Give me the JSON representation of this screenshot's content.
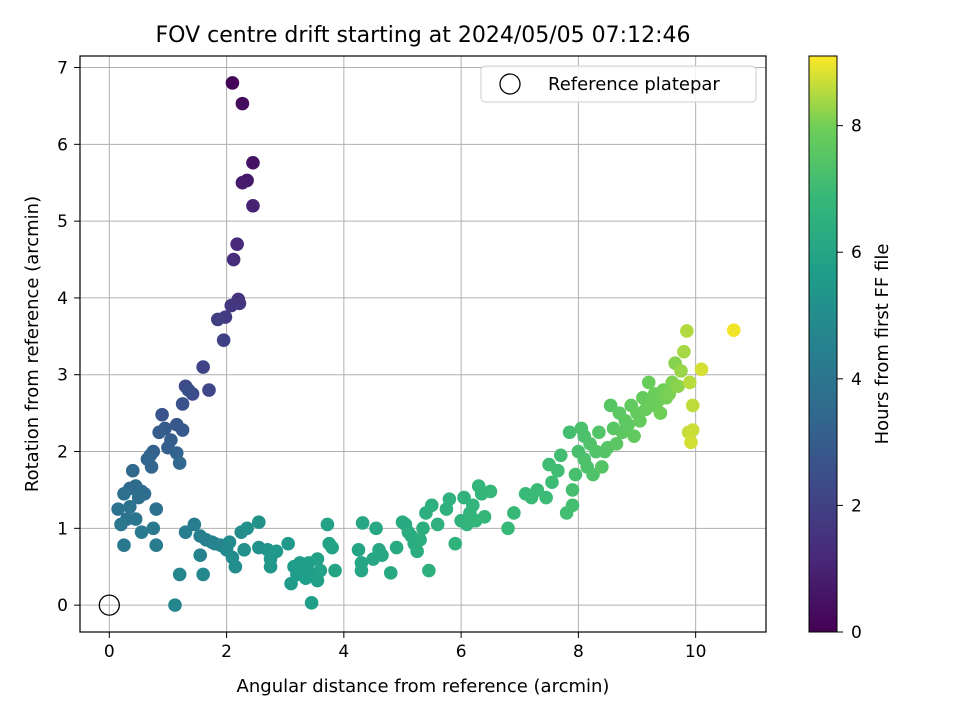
{
  "chart_data": {
    "type": "scatter",
    "title": "FOV centre drift starting at 2024/05/05 07:12:46",
    "xlabel": "Angular distance from reference (arcmin)",
    "ylabel": "Rotation from reference (arcmin)",
    "xlim": [
      -0.5,
      11.2
    ],
    "ylim": [
      -0.35,
      7.15
    ],
    "xticks": [
      0,
      2,
      4,
      6,
      8,
      10
    ],
    "yticks": [
      0,
      1,
      2,
      3,
      4,
      5,
      6,
      7
    ],
    "grid": true,
    "legend": {
      "position": "top-right",
      "entries": [
        "Reference platepar"
      ]
    },
    "reference_point": {
      "x": 0,
      "y": 0,
      "marker": "open-circle"
    },
    "colorbar": {
      "label": "Hours from first FF file",
      "colormap": "viridis",
      "range": [
        0,
        9.1
      ],
      "ticks": [
        0,
        2,
        4,
        6,
        8
      ]
    },
    "series": [
      {
        "points": [
          [
            2.1,
            6.8,
            0.1
          ],
          [
            2.27,
            6.53,
            0.3
          ],
          [
            2.45,
            5.76,
            0.5
          ],
          [
            2.35,
            5.53,
            0.7
          ],
          [
            2.27,
            5.5,
            0.8
          ],
          [
            2.45,
            5.2,
            1.0
          ],
          [
            2.18,
            4.7,
            1.2
          ],
          [
            2.12,
            4.5,
            1.3
          ],
          [
            2.2,
            3.98,
            1.5
          ],
          [
            2.22,
            3.93,
            1.6
          ],
          [
            2.08,
            3.9,
            1.7
          ],
          [
            1.98,
            3.75,
            1.8
          ],
          [
            1.85,
            3.72,
            1.9
          ],
          [
            1.95,
            3.45,
            2.0
          ],
          [
            1.6,
            3.1,
            2.1
          ],
          [
            1.7,
            2.8,
            2.2
          ],
          [
            1.3,
            2.85,
            2.3
          ],
          [
            1.42,
            2.75,
            2.4
          ],
          [
            1.35,
            2.8,
            2.5
          ],
          [
            1.25,
            2.62,
            2.6
          ],
          [
            0.9,
            2.48,
            2.7
          ],
          [
            1.15,
            2.35,
            2.8
          ],
          [
            1.25,
            2.28,
            2.85
          ],
          [
            0.95,
            2.3,
            2.9
          ],
          [
            0.85,
            2.25,
            3.0
          ],
          [
            1.05,
            2.15,
            3.05
          ],
          [
            1.0,
            2.05,
            3.1
          ],
          [
            0.75,
            2.0,
            3.15
          ],
          [
            0.7,
            1.95,
            3.2
          ],
          [
            1.15,
            1.98,
            3.25
          ],
          [
            0.65,
            1.9,
            3.3
          ],
          [
            0.72,
            1.8,
            3.35
          ],
          [
            1.2,
            1.85,
            3.4
          ],
          [
            0.4,
            1.75,
            3.45
          ],
          [
            0.45,
            1.55,
            3.5
          ],
          [
            0.35,
            1.52,
            3.55
          ],
          [
            0.55,
            1.48,
            3.6
          ],
          [
            0.6,
            1.45,
            3.65
          ],
          [
            0.5,
            1.4,
            3.7
          ],
          [
            0.25,
            1.45,
            3.75
          ],
          [
            0.8,
            1.25,
            3.8
          ],
          [
            0.15,
            1.25,
            3.85
          ],
          [
            0.35,
            1.28,
            3.9
          ],
          [
            0.3,
            1.12,
            3.95
          ],
          [
            0.45,
            1.12,
            4.0
          ],
          [
            0.2,
            1.05,
            4.05
          ],
          [
            0.25,
            0.78,
            4.1
          ],
          [
            0.75,
            1.0,
            4.15
          ],
          [
            0.55,
            0.95,
            4.2
          ],
          [
            0.8,
            0.78,
            4.25
          ],
          [
            1.45,
            1.05,
            4.3
          ],
          [
            1.3,
            0.95,
            4.35
          ],
          [
            1.55,
            0.9,
            4.4
          ],
          [
            1.65,
            0.85,
            4.45
          ],
          [
            1.75,
            0.82,
            4.5
          ],
          [
            1.8,
            0.8,
            4.55
          ],
          [
            1.55,
            0.65,
            4.6
          ],
          [
            1.9,
            0.78,
            4.65
          ],
          [
            1.2,
            0.4,
            4.7
          ],
          [
            1.12,
            0.0,
            4.75
          ],
          [
            1.6,
            0.4,
            4.8
          ],
          [
            2.0,
            0.72,
            4.85
          ],
          [
            2.05,
            0.82,
            4.9
          ],
          [
            2.1,
            0.62,
            4.95
          ],
          [
            2.15,
            0.5,
            5.0
          ],
          [
            2.25,
            0.95,
            5.05
          ],
          [
            2.35,
            1.0,
            5.1
          ],
          [
            2.3,
            0.72,
            5.15
          ],
          [
            2.55,
            1.08,
            5.2
          ],
          [
            2.55,
            0.75,
            5.25
          ],
          [
            2.7,
            0.72,
            5.3
          ],
          [
            2.75,
            0.6,
            5.35
          ],
          [
            2.75,
            0.5,
            5.4
          ],
          [
            2.85,
            0.7,
            5.45
          ],
          [
            3.05,
            0.8,
            5.5
          ],
          [
            3.1,
            0.28,
            5.55
          ],
          [
            3.15,
            0.5,
            5.6
          ],
          [
            3.2,
            0.4,
            5.62
          ],
          [
            3.25,
            0.55,
            5.65
          ],
          [
            3.3,
            0.45,
            5.68
          ],
          [
            3.35,
            0.35,
            5.7
          ],
          [
            3.4,
            0.55,
            5.72
          ],
          [
            3.45,
            0.03,
            5.75
          ],
          [
            3.5,
            0.4,
            5.78
          ],
          [
            3.55,
            0.32,
            5.8
          ],
          [
            3.55,
            0.6,
            5.82
          ],
          [
            3.6,
            0.45,
            5.85
          ],
          [
            3.72,
            1.05,
            5.88
          ],
          [
            3.75,
            0.8,
            5.9
          ],
          [
            3.8,
            0.75,
            5.92
          ],
          [
            3.85,
            0.45,
            5.95
          ],
          [
            4.25,
            0.72,
            5.98
          ],
          [
            4.3,
            0.55,
            6.0
          ],
          [
            4.3,
            0.45,
            6.02
          ],
          [
            4.32,
            1.07,
            6.05
          ],
          [
            4.5,
            0.6,
            6.08
          ],
          [
            4.55,
            1.0,
            6.1
          ],
          [
            4.6,
            0.72,
            6.12
          ],
          [
            4.65,
            0.65,
            6.15
          ],
          [
            4.8,
            0.42,
            6.18
          ],
          [
            4.9,
            0.75,
            6.2
          ],
          [
            5.0,
            1.08,
            6.22
          ],
          [
            5.05,
            1.05,
            6.25
          ],
          [
            5.1,
            0.95,
            6.28
          ],
          [
            5.15,
            0.9,
            6.3
          ],
          [
            5.2,
            0.8,
            6.32
          ],
          [
            5.25,
            0.7,
            6.35
          ],
          [
            5.3,
            0.85,
            6.38
          ],
          [
            5.35,
            1.0,
            6.4
          ],
          [
            5.4,
            1.2,
            6.42
          ],
          [
            5.45,
            0.45,
            6.45
          ],
          [
            5.5,
            1.3,
            6.48
          ],
          [
            5.6,
            1.05,
            6.5
          ],
          [
            5.75,
            1.25,
            6.52
          ],
          [
            5.8,
            1.38,
            6.55
          ],
          [
            5.9,
            0.8,
            6.58
          ],
          [
            6.0,
            1.1,
            6.6
          ],
          [
            6.05,
            1.4,
            6.62
          ],
          [
            6.1,
            1.05,
            6.65
          ],
          [
            6.15,
            1.2,
            6.68
          ],
          [
            6.2,
            1.3,
            6.7
          ],
          [
            6.25,
            1.1,
            6.72
          ],
          [
            6.3,
            1.55,
            6.75
          ],
          [
            6.35,
            1.45,
            6.78
          ],
          [
            6.4,
            1.15,
            6.8
          ],
          [
            6.5,
            1.48,
            6.82
          ],
          [
            6.8,
            1.0,
            6.85
          ],
          [
            6.9,
            1.2,
            6.88
          ],
          [
            7.1,
            1.45,
            6.9
          ],
          [
            7.2,
            1.4,
            6.92
          ],
          [
            7.3,
            1.5,
            6.95
          ],
          [
            7.45,
            1.4,
            6.98
          ],
          [
            7.55,
            1.6,
            7.0
          ],
          [
            7.5,
            1.83,
            7.02
          ],
          [
            7.65,
            1.75,
            7.05
          ],
          [
            7.7,
            1.95,
            7.08
          ],
          [
            7.8,
            1.2,
            7.1
          ],
          [
            7.85,
            2.25,
            7.12
          ],
          [
            7.9,
            1.3,
            7.15
          ],
          [
            7.9,
            1.5,
            7.18
          ],
          [
            7.95,
            1.7,
            7.2
          ],
          [
            8.0,
            2.0,
            7.22
          ],
          [
            8.05,
            2.3,
            7.25
          ],
          [
            8.1,
            2.2,
            7.28
          ],
          [
            8.1,
            1.9,
            7.3
          ],
          [
            8.15,
            1.8,
            7.32
          ],
          [
            8.2,
            2.1,
            7.35
          ],
          [
            8.25,
            1.7,
            7.38
          ],
          [
            8.3,
            2.0,
            7.4
          ],
          [
            8.35,
            2.25,
            7.42
          ],
          [
            8.4,
            1.8,
            7.45
          ],
          [
            8.45,
            2.0,
            7.48
          ],
          [
            8.5,
            2.05,
            7.5
          ],
          [
            8.55,
            2.6,
            7.52
          ],
          [
            8.6,
            2.3,
            7.55
          ],
          [
            8.65,
            2.1,
            7.58
          ],
          [
            8.7,
            2.5,
            7.6
          ],
          [
            8.75,
            2.25,
            7.62
          ],
          [
            8.8,
            2.4,
            7.65
          ],
          [
            8.85,
            2.35,
            7.68
          ],
          [
            8.9,
            2.6,
            7.7
          ],
          [
            8.95,
            2.2,
            7.72
          ],
          [
            9.0,
            2.5,
            7.75
          ],
          [
            9.05,
            2.4,
            7.78
          ],
          [
            9.1,
            2.7,
            7.8
          ],
          [
            9.15,
            2.55,
            7.82
          ],
          [
            9.2,
            2.9,
            7.85
          ],
          [
            9.25,
            2.6,
            7.88
          ],
          [
            9.3,
            2.75,
            7.9
          ],
          [
            9.35,
            2.65,
            7.92
          ],
          [
            9.4,
            2.5,
            7.95
          ],
          [
            9.45,
            2.8,
            7.98
          ],
          [
            9.5,
            2.7,
            8.0
          ],
          [
            9.55,
            2.75,
            8.05
          ],
          [
            9.6,
            2.9,
            8.1
          ],
          [
            9.65,
            3.15,
            8.15
          ],
          [
            9.7,
            2.85,
            8.2
          ],
          [
            9.75,
            3.05,
            8.3
          ],
          [
            9.8,
            3.3,
            8.4
          ],
          [
            9.85,
            3.57,
            8.5
          ],
          [
            9.9,
            2.9,
            8.55
          ],
          [
            9.95,
            2.6,
            8.6
          ],
          [
            9.88,
            2.25,
            8.65
          ],
          [
            9.95,
            2.28,
            8.7
          ],
          [
            9.92,
            2.12,
            8.75
          ],
          [
            10.1,
            3.07,
            8.8
          ],
          [
            10.65,
            3.58,
            9.0
          ]
        ]
      }
    ]
  }
}
